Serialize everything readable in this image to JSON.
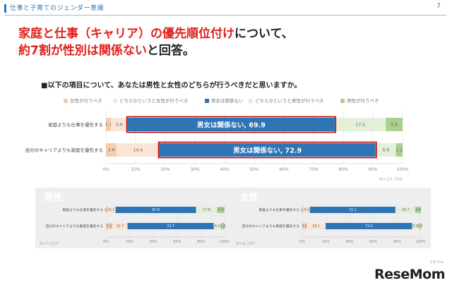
{
  "header": {
    "title": "仕事と子育てのジェンダー意識",
    "page": "7"
  },
  "headline": {
    "line1_red": "家庭と仕事（キャリア）の優先順位付け",
    "line1_black": "について、",
    "line2_red": "約7割が性別は関係ない",
    "line2_black": "と回答。"
  },
  "question": "■以下の項目について、あなたは男性と女性のどちらが行うべきだと思いますか。",
  "colors": {
    "female": "#f8cbad",
    "lean_female": "#fbe5d6",
    "no_gender": "#2e75b6",
    "lean_male": "#e2f0d9",
    "male": "#a9d18e",
    "highlight": "#c00000"
  },
  "chart_data": [
    {
      "id": "main",
      "type": "bar",
      "orientation": "horizontal",
      "stacked": true,
      "categories": [
        "家庭よりも仕事を優先する",
        "自分のキャリアよりも家庭を優先する"
      ],
      "series": [
        {
          "name": "女性が行うべき",
          "values": [
            1.7,
            3.6
          ]
        },
        {
          "name": "どちらかというと女性が行うべき",
          "values": [
            5.6,
            14.4
          ]
        },
        {
          "name": "男女は関係ない",
          "values": [
            69.9,
            72.9
          ]
        },
        {
          "name": "どちらかというと男性が行うべき",
          "values": [
            17.2,
            6.9
          ]
        },
        {
          "name": "男性が行うべき",
          "values": [
            5.6,
            2.2
          ]
        }
      ],
      "highlight_labels": [
        "男女は関係ない, 69.9",
        "男女は関係ない, 72.9"
      ],
      "xlim": [
        0,
        100
      ],
      "x_ticks": [
        "0%",
        "10%",
        "20%",
        "30%",
        "40%",
        "50%",
        "60%",
        "70%",
        "80%",
        "90%",
        "100%"
      ],
      "note": "N=13,709",
      "legend_position": "top"
    },
    {
      "id": "male",
      "title": "男性",
      "type": "bar",
      "orientation": "horizontal",
      "stacked": true,
      "categories": [
        "家庭よりも仕事を優先する",
        "自分のキャリアよりも家庭を優先する"
      ],
      "series": [
        {
          "name": "女性が行うべき",
          "values": [
            2.0,
            5.5
          ]
        },
        {
          "name": "どちらかというと女性が行うべき",
          "values": [
            6.1,
            12.7
          ]
        },
        {
          "name": "男女は関係ない",
          "values": [
            67.8,
            72.7
          ]
        },
        {
          "name": "どちらかというと男性が行うべき",
          "values": [
            17.8,
            6.2
          ]
        },
        {
          "name": "男性が行うべき",
          "values": [
            6.3,
            2.8
          ]
        }
      ],
      "xlim": [
        0,
        100
      ],
      "x_ticks": [
        "0%",
        "20%",
        "40%",
        "60%",
        "80%",
        "100%"
      ],
      "note": "N=5,520"
    },
    {
      "id": "female",
      "title": "女性",
      "type": "bar",
      "orientation": "horizontal",
      "stacked": true,
      "categories": [
        "家庭よりも仕事を優先する",
        "自分のキャリアよりも家庭を優先する"
      ],
      "series": [
        {
          "name": "女性が行うべき",
          "values": [
            1.4,
            3.6
          ]
        },
        {
          "name": "どちらかというと女性が行うべき",
          "values": [
            5.0,
            16.1
          ]
        },
        {
          "name": "男女は関係ない",
          "values": [
            72.1,
            73.0
          ]
        },
        {
          "name": "どちらかというと男性が行うべき",
          "values": [
            16.7,
            5.6
          ]
        },
        {
          "name": "男性が行うべき",
          "values": [
            4.8,
            1.6
          ]
        }
      ],
      "xlim": [
        0,
        100
      ],
      "x_ticks": [
        "0%",
        "20%",
        "40%",
        "60%",
        "80%",
        "100%"
      ],
      "note": "N=8,189"
    }
  ],
  "logo": {
    "text": "ReseMom",
    "sub": "リセマム"
  }
}
